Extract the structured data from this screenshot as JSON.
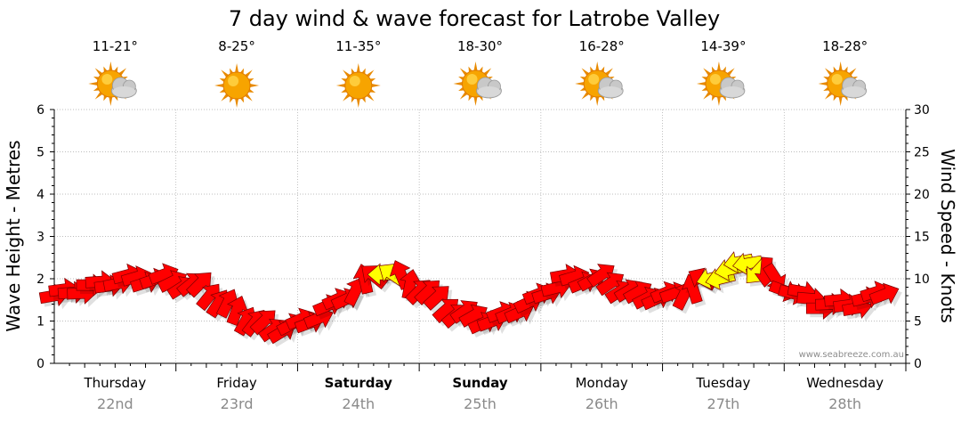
{
  "title": "7 day wind & wave forecast for Latrobe Valley",
  "credit": "www.seabreeze.com.au",
  "colors": {
    "wind_strong": "#ff0000",
    "wind_light": "#ffff00",
    "sun": "#f7a400",
    "cloud": "#c8c8c8"
  },
  "chart_data": {
    "type": "line",
    "title": "7 day wind & wave forecast for Latrobe Valley",
    "ylabel_left": "Wave Height - Metres",
    "ylabel_right": "Wind Speed - Knots",
    "ylim_left": [
      0,
      6
    ],
    "ylim_right": [
      0,
      30
    ],
    "yticks_left": [
      "0",
      "1",
      "2",
      "3",
      "4",
      "5",
      "6"
    ],
    "yticks_right": [
      "0",
      "5",
      "10",
      "15",
      "20",
      "25",
      "30"
    ],
    "days": [
      {
        "name": "Thursday",
        "date": "22nd",
        "temp": "11-21°",
        "weather": "partly-cloudy-icon",
        "bold": false
      },
      {
        "name": "Friday",
        "date": "23rd",
        "temp": "8-25°",
        "weather": "sunny-icon",
        "bold": false
      },
      {
        "name": "Saturday",
        "date": "24th",
        "temp": "11-35°",
        "weather": "sunny-icon",
        "bold": true
      },
      {
        "name": "Sunday",
        "date": "25th",
        "temp": "18-30°",
        "weather": "partly-cloudy-icon",
        "bold": true
      },
      {
        "name": "Monday",
        "date": "26th",
        "temp": "16-28°",
        "weather": "partly-cloudy-icon",
        "bold": false
      },
      {
        "name": "Tuesday",
        "date": "27th",
        "temp": "14-39°",
        "weather": "partly-cloudy-icon",
        "bold": false
      },
      {
        "name": "Wednesday",
        "date": "28th",
        "temp": "18-28°",
        "weather": "partly-cloudy-icon",
        "bold": false
      }
    ],
    "wind_series": {
      "name": "Wind speed (knots) and direction",
      "time_days": [
        0.0,
        0.3,
        0.6,
        0.9,
        1.2,
        1.5,
        1.8,
        2.1,
        2.4,
        2.7,
        3.0,
        3.3,
        3.6,
        3.9,
        4.2,
        4.5,
        4.8,
        5.1,
        5.4,
        5.7,
        6.0,
        6.3,
        6.6,
        6.9
      ],
      "speed_knots": [
        8,
        9,
        10,
        10,
        9,
        6,
        4,
        5,
        8,
        11,
        9,
        6,
        5,
        7,
        10,
        10,
        8,
        8,
        10,
        12,
        9,
        7,
        7,
        9
      ],
      "direction_deg": [
        260,
        270,
        255,
        250,
        225,
        200,
        235,
        250,
        245,
        90,
        225,
        230,
        250,
        245,
        260,
        235,
        240,
        250,
        75,
        80,
        290,
        270,
        260,
        245
      ],
      "color": [
        "red",
        "red",
        "red",
        "red",
        "red",
        "red",
        "red",
        "red",
        "red",
        "yellow",
        "red",
        "red",
        "red",
        "red",
        "red",
        "red",
        "red",
        "red",
        "yellow",
        "yellow",
        "red",
        "red",
        "red",
        "red"
      ]
    }
  }
}
